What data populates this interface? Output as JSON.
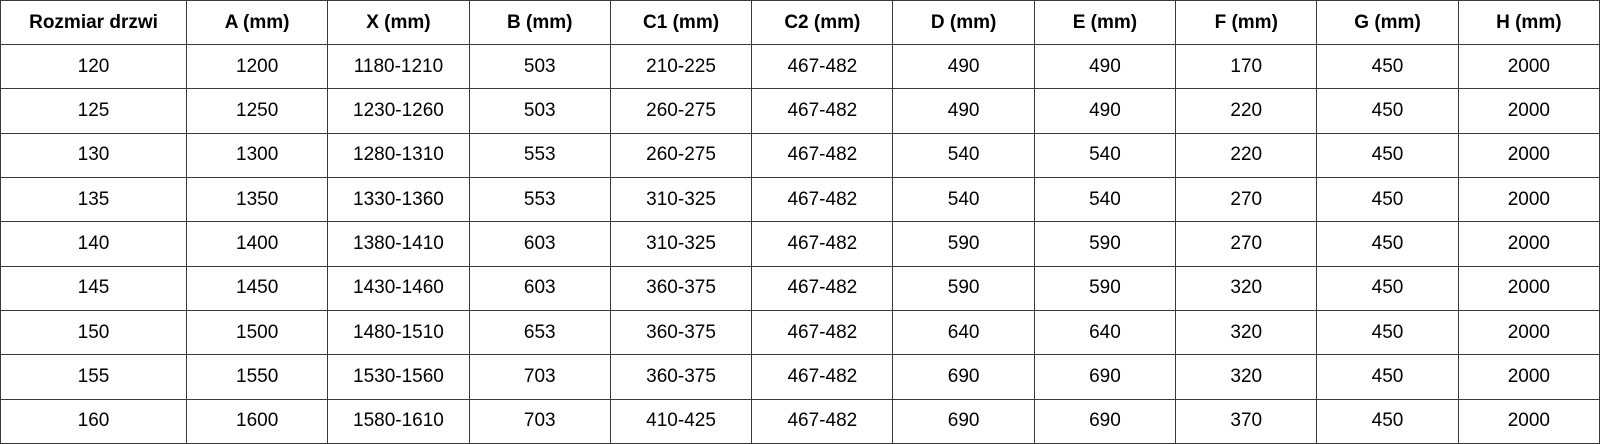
{
  "table": {
    "headers": [
      "Rozmiar drzwi",
      "A (mm)",
      "X (mm)",
      "B (mm)",
      "C1 (mm)",
      "C2 (mm)",
      "D (mm)",
      "E (mm)",
      "F (mm)",
      "G (mm)",
      "H (mm)"
    ],
    "rows": [
      [
        "120",
        "1200",
        "1180-1210",
        "503",
        "210-225",
        "467-482",
        "490",
        "490",
        "170",
        "450",
        "2000"
      ],
      [
        "125",
        "1250",
        "1230-1260",
        "503",
        "260-275",
        "467-482",
        "490",
        "490",
        "220",
        "450",
        "2000"
      ],
      [
        "130",
        "1300",
        "1280-1310",
        "553",
        "260-275",
        "467-482",
        "540",
        "540",
        "220",
        "450",
        "2000"
      ],
      [
        "135",
        "1350",
        "1330-1360",
        "553",
        "310-325",
        "467-482",
        "540",
        "540",
        "270",
        "450",
        "2000"
      ],
      [
        "140",
        "1400",
        "1380-1410",
        "603",
        "310-325",
        "467-482",
        "590",
        "590",
        "270",
        "450",
        "2000"
      ],
      [
        "145",
        "1450",
        "1430-1460",
        "603",
        "360-375",
        "467-482",
        "590",
        "590",
        "320",
        "450",
        "2000"
      ],
      [
        "150",
        "1500",
        "1480-1510",
        "653",
        "360-375",
        "467-482",
        "640",
        "640",
        "320",
        "450",
        "2000"
      ],
      [
        "155",
        "1550",
        "1530-1560",
        "703",
        "360-375",
        "467-482",
        "690",
        "690",
        "320",
        "450",
        "2000"
      ],
      [
        "160",
        "1600",
        "1580-1610",
        "703",
        "410-425",
        "467-482",
        "690",
        "690",
        "370",
        "450",
        "2000"
      ]
    ]
  }
}
